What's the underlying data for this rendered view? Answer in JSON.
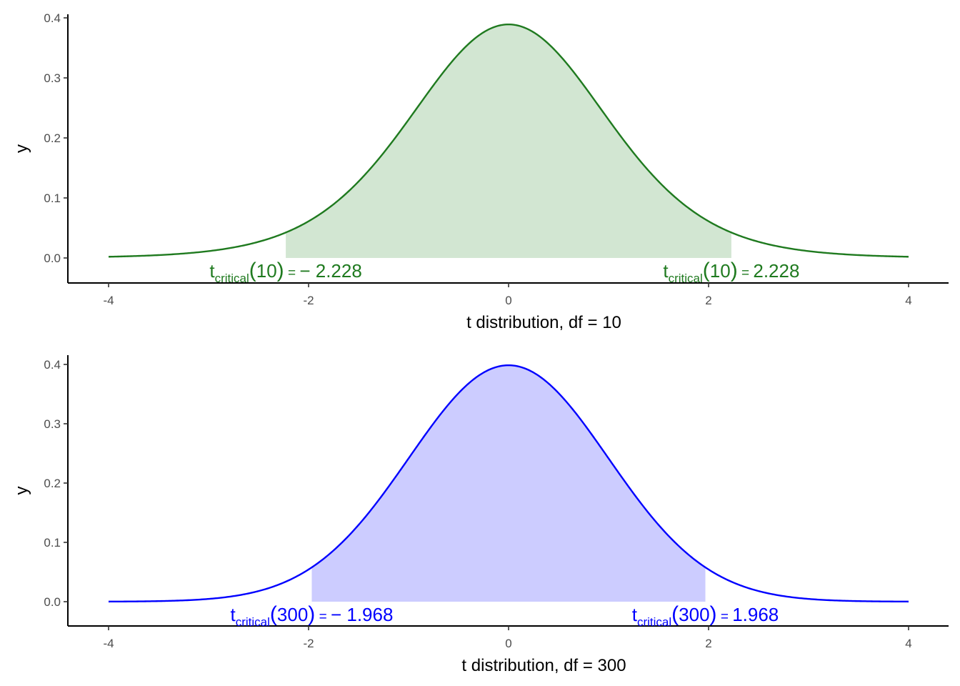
{
  "chart_data": [
    {
      "type": "area",
      "dist": "t",
      "df": 10,
      "xlabel": "t distribution, df = 10",
      "ylabel": "y",
      "xlim": [
        -4,
        4
      ],
      "ylim": [
        0,
        0.4
      ],
      "xticks": [
        -4,
        -2,
        0,
        2,
        4
      ],
      "xtick_labels": [
        "-4",
        "-2",
        "0",
        "2",
        "4"
      ],
      "yticks": [
        0,
        0.1,
        0.2,
        0.3,
        0.4
      ],
      "ytick_labels": [
        "0.0",
        "0.1",
        "0.2",
        "0.3",
        "0.4"
      ],
      "shaded_interval": [
        -2.228,
        2.228
      ],
      "line_color": "#1f7a1f",
      "fill_color": "#d2e6d2",
      "series": [
        {
          "x": [
            -4.0,
            -3.5,
            -3.0,
            -2.5,
            -2.228,
            -2.0,
            -1.5,
            -1.0,
            -0.5,
            0.0,
            0.5,
            1.0,
            1.5,
            2.0,
            2.228,
            2.5,
            3.0,
            3.5,
            4.0
          ],
          "values": [
            0.002,
            0.0051,
            0.0114,
            0.0269,
            0.0397,
            0.0611,
            0.1274,
            0.2304,
            0.3397,
            0.3891,
            0.3397,
            0.2304,
            0.1274,
            0.0611,
            0.0397,
            0.0269,
            0.0114,
            0.0051,
            0.002
          ]
        }
      ],
      "annotations": [
        {
          "prefix": "t",
          "sub": "critical",
          "open": "(",
          "arg": "10",
          "close": ")",
          "eq": " = ",
          "value": "− 2.228"
        },
        {
          "prefix": "t",
          "sub": "critical",
          "open": "(",
          "arg": "10",
          "close": ")",
          "eq": " = ",
          "value": "2.228"
        }
      ]
    },
    {
      "type": "area",
      "dist": "t",
      "df": 300,
      "xlabel": "t distribution, df = 300",
      "ylabel": "y",
      "xlim": [
        -4,
        4
      ],
      "ylim": [
        0,
        0.4
      ],
      "xticks": [
        -4,
        -2,
        0,
        2,
        4
      ],
      "xtick_labels": [
        "-4",
        "-2",
        "0",
        "2",
        "4"
      ],
      "yticks": [
        0,
        0.1,
        0.2,
        0.3,
        0.4
      ],
      "ytick_labels": [
        "0.0",
        "0.1",
        "0.2",
        "0.3",
        "0.4"
      ],
      "shaded_interval": [
        -1.968,
        1.968
      ],
      "line_color": "#0000ff",
      "fill_color": "#ccccff",
      "series": [
        {
          "x": [
            -4.0,
            -3.5,
            -3.0,
            -2.5,
            -2.0,
            -1.968,
            -1.5,
            -1.0,
            -0.5,
            0.0,
            0.5,
            1.0,
            1.5,
            1.968,
            2.0,
            2.5,
            3.0,
            3.5,
            4.0
          ],
          "values": [
            0.0002,
            0.0009,
            0.0045,
            0.0178,
            0.0543,
            0.0578,
            0.1295,
            0.2417,
            0.3519,
            0.3983,
            0.3519,
            0.2417,
            0.1295,
            0.0578,
            0.0543,
            0.0178,
            0.0045,
            0.0009,
            0.0002
          ]
        }
      ],
      "annotations": [
        {
          "prefix": "t",
          "sub": "critical",
          "open": "(",
          "arg": "300",
          "close": ")",
          "eq": " = ",
          "value": "− 1.968"
        },
        {
          "prefix": "t",
          "sub": "critical",
          "open": "(",
          "arg": "300",
          "close": ")",
          "eq": " = ",
          "value": "1.968"
        }
      ]
    }
  ]
}
